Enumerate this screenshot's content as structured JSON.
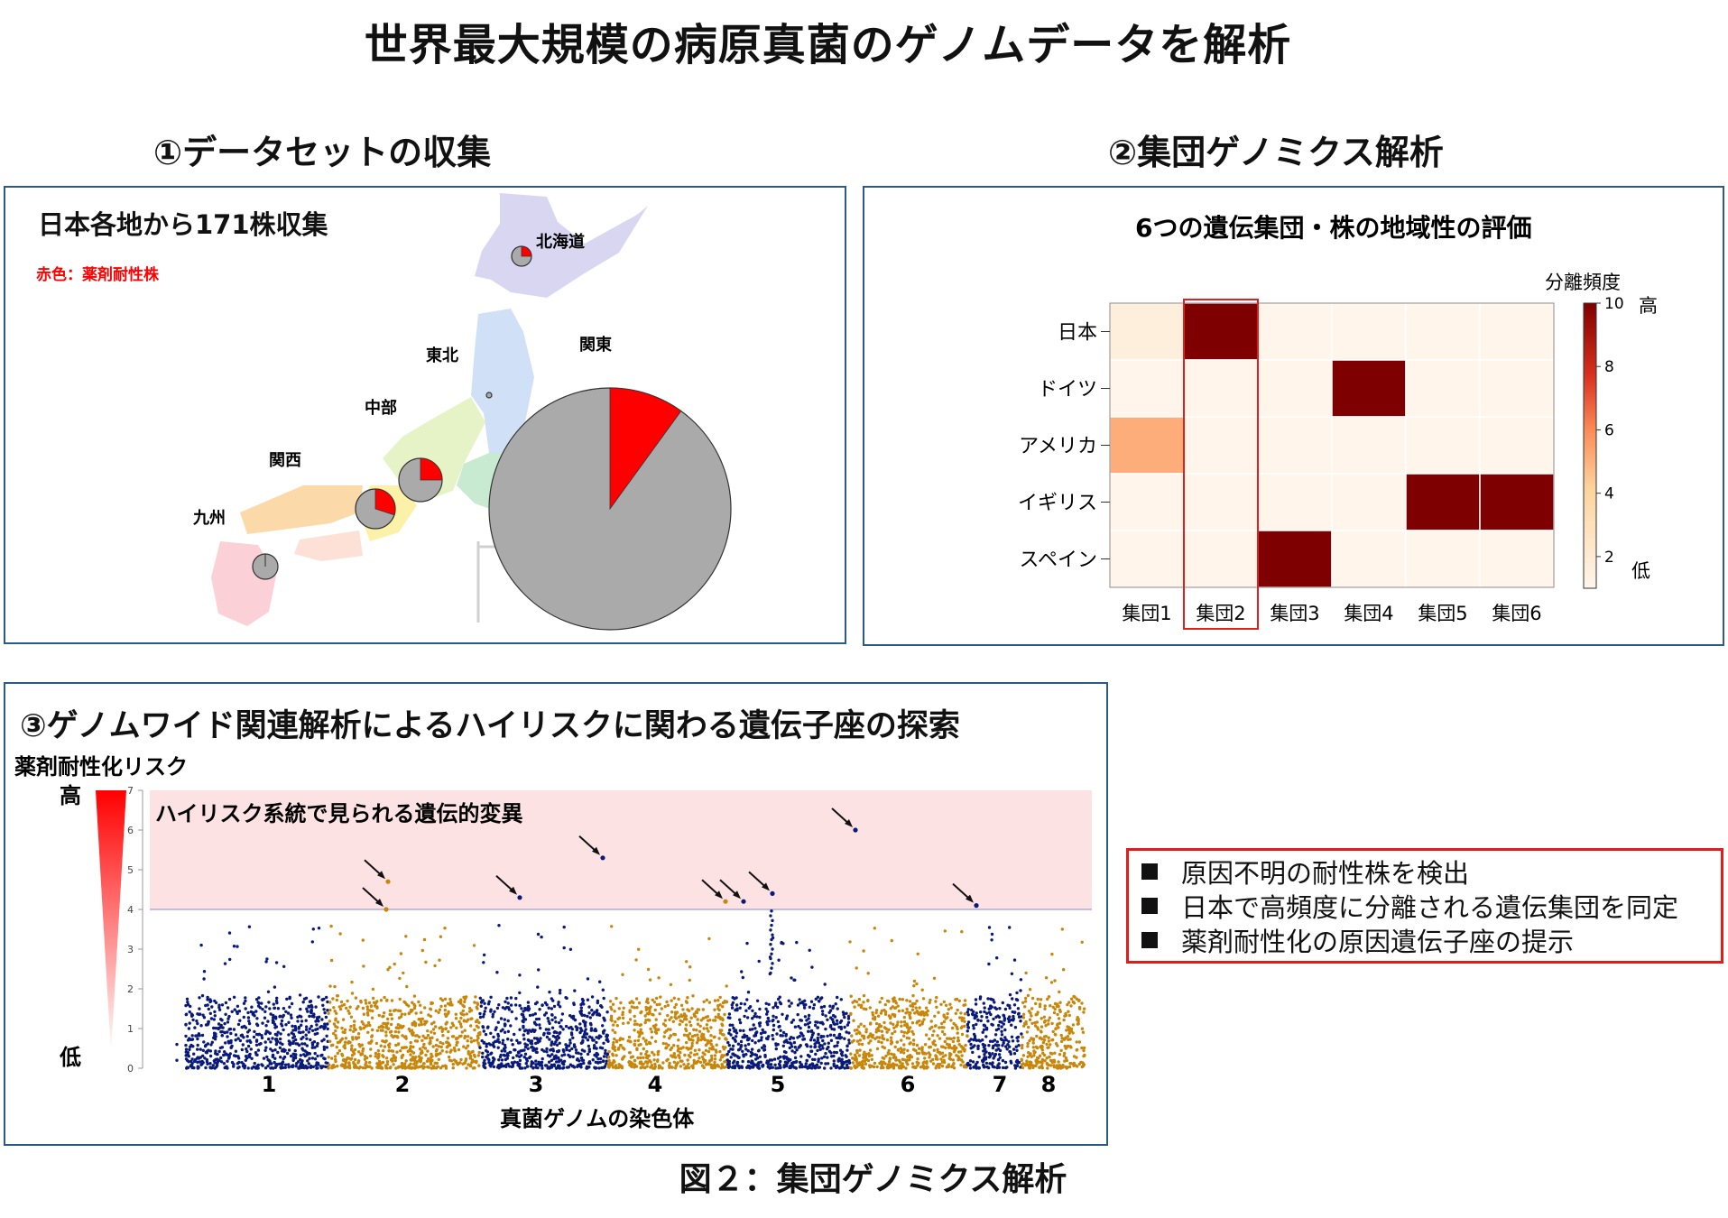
{
  "title": "世界最大規模の病原真菌のゲノムデータを解析",
  "caption": "図２：集団ゲノミクス解析",
  "section1": {
    "heading": "①データセットの収集",
    "subtitle": "日本各地から171株収集",
    "legend_note": "赤色：薬剤耐性株",
    "colors": {
      "resistant": "#ff0000",
      "other": "#aaaaaa"
    },
    "regions": [
      {
        "name": "北海道",
        "resistant_fraction": 0.25
      },
      {
        "name": "東北",
        "resistant_fraction": 0.0
      },
      {
        "name": "関東",
        "resistant_fraction": 0.1
      },
      {
        "name": "中部",
        "resistant_fraction": 0.25
      },
      {
        "name": "関西",
        "resistant_fraction": 0.3
      },
      {
        "name": "九州",
        "resistant_fraction": 0.0
      }
    ]
  },
  "section2": {
    "heading": "②集団ゲノミクス解析",
    "chart_title": "6つの遺伝集団・株の地域性の評価",
    "colorbar_title": "分離頻度",
    "colorbar_high": "高",
    "colorbar_low": "低",
    "colorbar_ticks": [
      "2",
      "4",
      "6",
      "8",
      "10"
    ],
    "highlight_column": "集団2"
  },
  "section3": {
    "heading": "③ゲノムワイド関連解析によるハイリスクに関わる遺伝子座の探索",
    "ylabel": "薬剤耐性化リスク",
    "high": "高",
    "low": "低",
    "zone_label": "ハイリスク系統で見られる遺伝的変異",
    "xlabel": "真菌ゲノムの染色体",
    "yticks": [
      "0",
      "1",
      "2",
      "3",
      "4",
      "5",
      "6",
      "7"
    ],
    "threshold": 4,
    "colors": {
      "navy": "#0a1a7a",
      "orange": "#c8860a",
      "zone": "#fde2e4"
    }
  },
  "findings": [
    "原因不明の耐性株を検出",
    "日本で高頻度に分離される遺伝集団を同定",
    "薬剤耐性化の原因遺伝子座の提示"
  ],
  "chart_data": [
    {
      "type": "heatmap",
      "title": "6つの遺伝集団・株の地域性の評価",
      "x": [
        "集団1",
        "集団2",
        "集団3",
        "集団4",
        "集団5",
        "集団6"
      ],
      "y": [
        "日本",
        "ドイツ",
        "アメリカ",
        "イギリス",
        "スペイン"
      ],
      "values": [
        [
          2,
          10,
          1,
          1,
          1,
          1
        ],
        [
          1,
          1,
          1,
          10,
          1,
          1
        ],
        [
          5,
          1,
          1,
          1,
          1,
          1
        ],
        [
          1,
          1,
          1,
          1,
          10,
          10
        ],
        [
          1,
          1,
          10,
          1,
          1,
          1
        ]
      ],
      "zlim": [
        1,
        10
      ],
      "colorbar_label": "分離頻度"
    },
    {
      "type": "scatter",
      "title": "",
      "xlabel": "真菌ゲノムの染色体",
      "ylabel": "薬剤耐性化リスク",
      "ylim": [
        0,
        7
      ],
      "chromosomes": [
        "1",
        "2",
        "3",
        "4",
        "5",
        "6",
        "7",
        "8"
      ],
      "significant_points": [
        {
          "chromosome": "2",
          "value": 4.7
        },
        {
          "chromosome": "2",
          "value": 4.0
        },
        {
          "chromosome": "3",
          "value": 4.3
        },
        {
          "chromosome": "3",
          "value": 5.3
        },
        {
          "chromosome": "4",
          "value": 4.2
        },
        {
          "chromosome": "5",
          "value": 4.2
        },
        {
          "chromosome": "5",
          "value": 4.4
        },
        {
          "chromosome": "5",
          "value": 6.0
        },
        {
          "chromosome": "7",
          "value": 4.1
        }
      ]
    }
  ]
}
